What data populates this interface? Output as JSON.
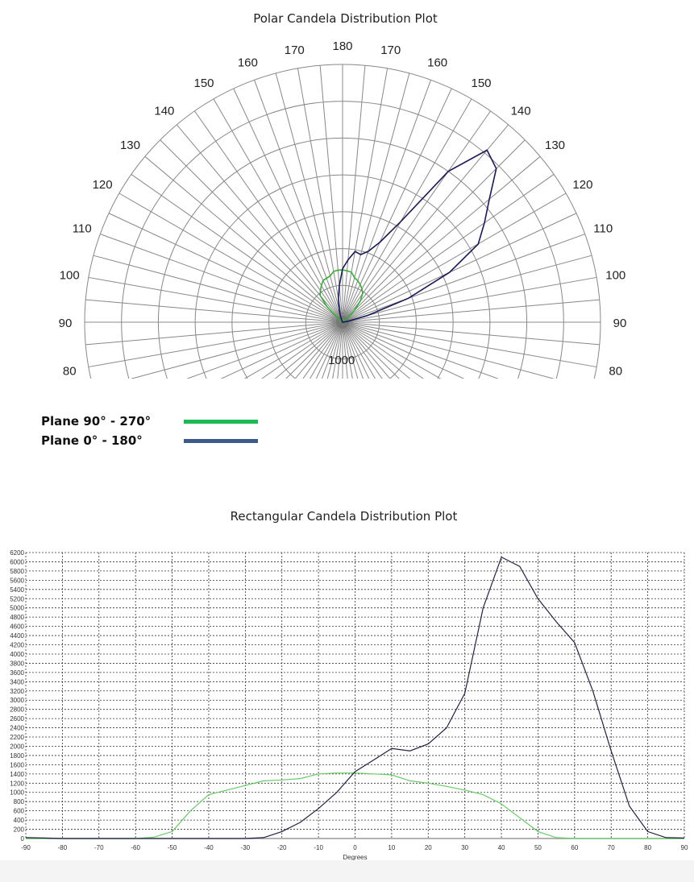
{
  "polar": {
    "title": "Polar Candela Distribution Plot",
    "ring_label": "1000",
    "angle_labels_left": [
      "80",
      "90",
      "100",
      "110",
      "120",
      "130",
      "140",
      "150",
      "160",
      "170",
      "180"
    ],
    "angle_labels_right": [
      "80",
      "90",
      "100",
      "110",
      "120",
      "130",
      "140",
      "150",
      "160",
      "170"
    ]
  },
  "legend": {
    "items": [
      {
        "label": "Plane 90° - 270°",
        "color": "#1db954"
      },
      {
        "label": "Plane 0° - 180°",
        "color": "#3c5a8c"
      }
    ]
  },
  "chart_data": [
    {
      "type": "polar",
      "title": "Polar Candela Distribution Plot",
      "radial_max": 7000,
      "radial_step": 1000,
      "series": [
        {
          "name": "Plane 90° - 270°",
          "color": "#33b033",
          "ref": "green"
        },
        {
          "name": "Plane 0° - 180°",
          "color": "#1a1a5a",
          "ref": "blue"
        }
      ]
    },
    {
      "type": "line",
      "title": "Rectangular Candela Distribution Plot",
      "xlabel": "Degrees",
      "ylabel": "",
      "xlim": [
        -90,
        90
      ],
      "ylim": [
        0,
        6200
      ],
      "xticks": [
        -90,
        -80,
        -70,
        -60,
        -50,
        -40,
        -30,
        -20,
        -10,
        0,
        10,
        20,
        30,
        40,
        50,
        60,
        70,
        80,
        90
      ],
      "ystep": 200,
      "grid": true,
      "x": [
        -90,
        -85,
        -80,
        -75,
        -70,
        -65,
        -60,
        -55,
        -50,
        -45,
        -40,
        -35,
        -30,
        -25,
        -20,
        -15,
        -10,
        -5,
        0,
        5,
        10,
        15,
        20,
        25,
        30,
        35,
        40,
        45,
        50,
        55,
        60,
        65,
        70,
        75,
        80,
        85,
        90
      ],
      "series": [
        {
          "name": "Plane 90° - 270°",
          "color": "#66cc66",
          "values": [
            0,
            0,
            0,
            0,
            0,
            0,
            0,
            30,
            150,
            600,
            950,
            1050,
            1150,
            1250,
            1270,
            1300,
            1400,
            1420,
            1420,
            1400,
            1380,
            1250,
            1200,
            1130,
            1050,
            950,
            750,
            450,
            150,
            20,
            0,
            0,
            0,
            0,
            0,
            0,
            0
          ]
        },
        {
          "name": "Plane 0° - 180°",
          "color": "#222244",
          "values": [
            20,
            10,
            0,
            0,
            0,
            0,
            0,
            0,
            0,
            0,
            0,
            0,
            0,
            20,
            150,
            350,
            650,
            1000,
            1450,
            1700,
            1950,
            1900,
            2050,
            2400,
            3150,
            5000,
            6100,
            5900,
            5200,
            4700,
            4250,
            3200,
            1900,
            700,
            150,
            20,
            10
          ]
        }
      ]
    }
  ]
}
